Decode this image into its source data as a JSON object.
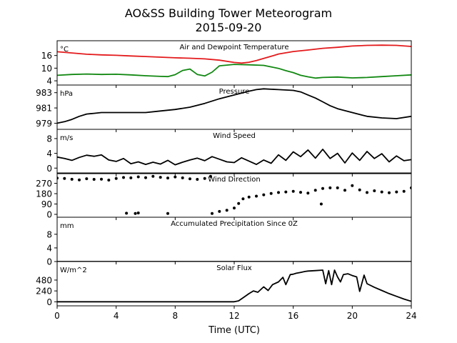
{
  "figure": {
    "title_line1": "AO&SS Building Tower Meteorogram",
    "title_line2": "2015-09-20",
    "xlabel": "Time (UTC)"
  },
  "chart_data": [
    {
      "type": "line",
      "title": "Air and Dewpoint Temperature",
      "unit": "°C",
      "xlim": [
        0,
        24
      ],
      "ylim": [
        2,
        23
      ],
      "yticks": [
        4,
        10,
        16
      ],
      "series": [
        {
          "color": "#e31a1c",
          "x": [
            0,
            1,
            2,
            3,
            4,
            5,
            6,
            7,
            8,
            9,
            10,
            11,
            12,
            12.5,
            13,
            13.5,
            14,
            14.5,
            15,
            16,
            17,
            18,
            19,
            20,
            21,
            22,
            23,
            24
          ],
          "y": [
            17.8,
            17.2,
            16.6,
            16.3,
            16.1,
            15.8,
            15.5,
            15.2,
            14.9,
            14.7,
            14.4,
            13.8,
            12.7,
            12.4,
            12.8,
            13.6,
            14.6,
            15.6,
            16.7,
            17.9,
            18.6,
            19.4,
            19.9,
            20.5,
            20.8,
            20.9,
            20.8,
            20.3
          ]
        },
        {
          "color": "#118811",
          "x": [
            0,
            1,
            2,
            3,
            4,
            5,
            6,
            7,
            7.5,
            8,
            8.5,
            9,
            9.5,
            10,
            10.5,
            11,
            12,
            13,
            14,
            14.5,
            15,
            15.5,
            16,
            16.5,
            17,
            17.5,
            18,
            19,
            20,
            21,
            22,
            23,
            24
          ],
          "y": [
            6.6,
            7.0,
            7.2,
            7.0,
            7.1,
            6.8,
            6.4,
            6.1,
            6.0,
            6.9,
            8.9,
            9.6,
            7.0,
            6.3,
            8.1,
            11.1,
            11.8,
            11.6,
            11.3,
            10.6,
            9.9,
            8.8,
            7.9,
            6.6,
            5.9,
            5.3,
            5.6,
            5.8,
            5.4,
            5.6,
            6.0,
            6.4,
            6.8
          ]
        }
      ]
    },
    {
      "type": "line",
      "title": "Pressure",
      "unit": "hPa",
      "xlim": [
        0,
        24
      ],
      "ylim": [
        978.2,
        984.0
      ],
      "yticks": [
        979,
        981,
        983
      ],
      "series": [
        {
          "color": "#000000",
          "x": [
            0,
            0.5,
            1,
            1.5,
            2,
            2.5,
            3,
            4,
            5,
            6,
            7,
            8,
            9,
            10,
            11,
            12,
            13,
            13.5,
            14,
            15,
            16,
            16.5,
            17,
            17.5,
            18,
            18.5,
            19,
            20,
            21,
            22,
            23,
            24
          ],
          "y": [
            979.0,
            979.2,
            979.5,
            979.9,
            980.2,
            980.3,
            980.4,
            980.4,
            980.4,
            980.4,
            980.6,
            980.8,
            981.1,
            981.6,
            982.2,
            982.7,
            983.2,
            983.4,
            983.5,
            983.4,
            983.3,
            983.1,
            982.7,
            982.3,
            981.8,
            981.3,
            980.9,
            980.4,
            979.9,
            979.7,
            979.6,
            979.9
          ]
        }
      ]
    },
    {
      "type": "line",
      "title": "Wind Speed",
      "unit": "m/s",
      "xlim": [
        0,
        24
      ],
      "ylim": [
        -1.5,
        10.5
      ],
      "yticks": [
        0,
        4,
        8
      ],
      "series": [
        {
          "color": "#000000",
          "x": [
            0,
            0.5,
            1,
            1.5,
            2,
            2.5,
            3,
            3.5,
            4,
            4.5,
            5,
            5.5,
            6,
            6.5,
            7,
            7.5,
            8,
            8.5,
            9,
            9.5,
            10,
            10.5,
            11,
            11.5,
            12,
            12.5,
            13,
            13.5,
            14,
            14.5,
            15,
            15.5,
            16,
            16.5,
            17,
            17.5,
            18,
            18.5,
            19,
            19.5,
            20,
            20.5,
            21,
            21.5,
            22,
            22.5,
            23,
            23.5,
            24
          ],
          "y": [
            3.0,
            2.6,
            2.1,
            2.9,
            3.5,
            3.2,
            3.6,
            2.2,
            1.8,
            2.6,
            1.2,
            1.7,
            1.0,
            1.6,
            1.1,
            2.1,
            0.9,
            1.6,
            2.2,
            2.7,
            2.0,
            3.1,
            2.4,
            1.7,
            1.5,
            2.8,
            1.9,
            1.0,
            2.2,
            1.3,
            3.6,
            2.1,
            4.4,
            3.1,
            4.9,
            2.7,
            5.1,
            2.6,
            4.0,
            1.4,
            4.1,
            2.1,
            4.5,
            2.6,
            3.9,
            1.7,
            3.3,
            2.0,
            2.3
          ]
        }
      ]
    },
    {
      "type": "scatter",
      "title": "Wind Direction",
      "unit": "",
      "xlim": [
        0,
        24
      ],
      "ylim": [
        -25,
        360
      ],
      "yticks": [
        0,
        90,
        180,
        270
      ],
      "series": [
        {
          "color": "#000000",
          "x": [
            0,
            0.5,
            1,
            1.5,
            2,
            2.5,
            3,
            3.5,
            4,
            4.5,
            5,
            5.5,
            6,
            6.5,
            7,
            7.5,
            8,
            8.5,
            9,
            9.5,
            10,
            10.4,
            4.7,
            5.3,
            5.5,
            7.5,
            10.5,
            11,
            11.5,
            12,
            12.3,
            12.6,
            13,
            13.5,
            14,
            14.5,
            15,
            15.5,
            16,
            16.5,
            17,
            17.5,
            18,
            18.5,
            19,
            19.5,
            20,
            20.5,
            21,
            21.5,
            22,
            22.5,
            23,
            23.5,
            24,
            17.9
          ],
          "y": [
            315,
            312,
            305,
            300,
            310,
            304,
            306,
            298,
            312,
            320,
            317,
            326,
            319,
            330,
            322,
            316,
            325,
            317,
            309,
            304,
            312,
            330,
            10,
            8,
            12,
            8,
            8,
            25,
            35,
            55,
            95,
            135,
            150,
            158,
            170,
            182,
            190,
            195,
            200,
            192,
            185,
            210,
            225,
            230,
            230,
            210,
            250,
            212,
            190,
            205,
            195,
            188,
            195,
            200,
            230,
            90
          ]
        }
      ]
    },
    {
      "type": "line",
      "title": "Accumulated Precipitation Since 0Z",
      "unit": "mm",
      "xlim": [
        0,
        24
      ],
      "ylim": [
        0,
        13
      ],
      "yticks": [
        0,
        4,
        8
      ],
      "series": [
        {
          "color": "#000000",
          "x": [
            0,
            24
          ],
          "y": [
            0,
            0
          ]
        }
      ]
    },
    {
      "type": "line",
      "title": "Solar Flux",
      "unit": "W/m^2",
      "xlim": [
        0,
        24
      ],
      "ylim": [
        -90,
        890
      ],
      "yticks": [
        0,
        240,
        480
      ],
      "series": [
        {
          "color": "#000000",
          "x": [
            0,
            11,
            12,
            12.3,
            12.7,
            13,
            13.3,
            13.6,
            14,
            14.3,
            14.6,
            15,
            15.3,
            15.5,
            15.8,
            16,
            16.2,
            16.5,
            16.8,
            17,
            17.5,
            18,
            18.2,
            18.4,
            18.6,
            18.8,
            19,
            19.2,
            19.4,
            19.7,
            20,
            20.3,
            20.5,
            20.8,
            21,
            21.5,
            22,
            22.5,
            23,
            23.5,
            24
          ],
          "y": [
            0,
            0,
            0,
            20,
            110,
            180,
            240,
            210,
            330,
            250,
            380,
            440,
            540,
            380,
            600,
            610,
            630,
            650,
            670,
            680,
            690,
            700,
            400,
            690,
            380,
            700,
            550,
            440,
            600,
            620,
            580,
            550,
            230,
            590,
            400,
            320,
            250,
            180,
            120,
            60,
            10
          ]
        }
      ]
    }
  ],
  "xaxis": {
    "ticks": [
      0,
      4,
      8,
      12,
      16,
      20,
      24
    ]
  }
}
